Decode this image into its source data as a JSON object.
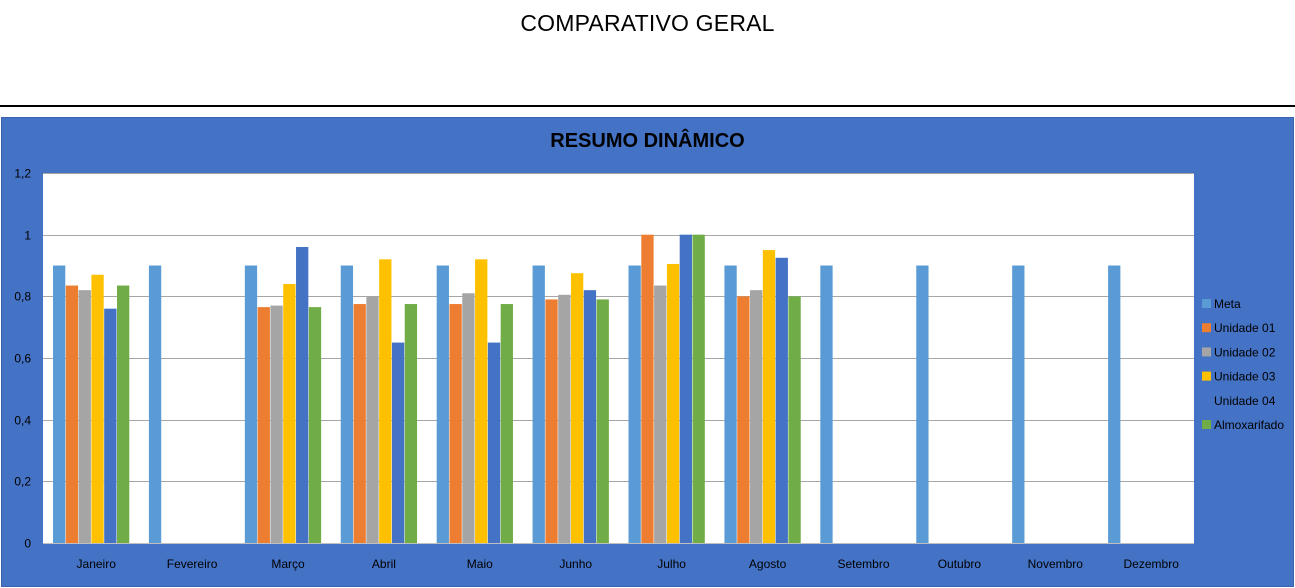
{
  "page": {
    "title": "COMPARATIVO GERAL"
  },
  "colors": {
    "panel_background": "#4472c4",
    "plot_background": "#ffffff",
    "gridline": "#a6a6a6",
    "text": "#000000"
  },
  "chart_data": {
    "type": "bar",
    "title": "RESUMO DINÂMICO",
    "xlabel": "",
    "ylabel": "",
    "ylim": [
      0,
      1.2
    ],
    "yticks": [
      0,
      0.2,
      0.4,
      0.6,
      0.8,
      1,
      1.2
    ],
    "ytick_labels": [
      "0",
      "0,2",
      "0,4",
      "0,6",
      "0,8",
      "1",
      "1,2"
    ],
    "grid": true,
    "legend_position": "right",
    "categories": [
      "Janeiro",
      "Fevereiro",
      "Março",
      "Abril",
      "Maio",
      "Junho",
      "Julho",
      "Agosto",
      "Setembro",
      "Outubro",
      "Novembro",
      "Dezembro"
    ],
    "series": [
      {
        "name": "Meta",
        "color": "#5b9bd5",
        "values": [
          0.9,
          0.9,
          0.9,
          0.9,
          0.9,
          0.9,
          0.9,
          0.9,
          0.9,
          0.9,
          0.9,
          0.9
        ]
      },
      {
        "name": "Unidade 01",
        "color": "#ed7d31",
        "values": [
          0.835,
          null,
          0.765,
          0.775,
          0.775,
          0.79,
          1.0,
          0.8,
          null,
          null,
          null,
          null
        ]
      },
      {
        "name": "Unidade 02",
        "color": "#a5a5a5",
        "values": [
          0.82,
          null,
          0.77,
          0.8,
          0.81,
          0.805,
          0.835,
          0.82,
          null,
          null,
          null,
          null
        ]
      },
      {
        "name": "Unidade 03",
        "color": "#ffc000",
        "values": [
          0.87,
          null,
          0.84,
          0.92,
          0.92,
          0.875,
          0.905,
          0.95,
          null,
          null,
          null,
          null
        ]
      },
      {
        "name": "Unidade 04",
        "color": "#4472c4",
        "values": [
          0.76,
          null,
          0.96,
          0.65,
          0.65,
          0.82,
          1.0,
          0.925,
          null,
          null,
          null,
          null
        ]
      },
      {
        "name": "Almoxarifado",
        "color": "#70ad47",
        "values": [
          0.835,
          null,
          0.765,
          0.775,
          0.775,
          0.79,
          1.0,
          0.8,
          null,
          null,
          null,
          null
        ]
      }
    ]
  }
}
